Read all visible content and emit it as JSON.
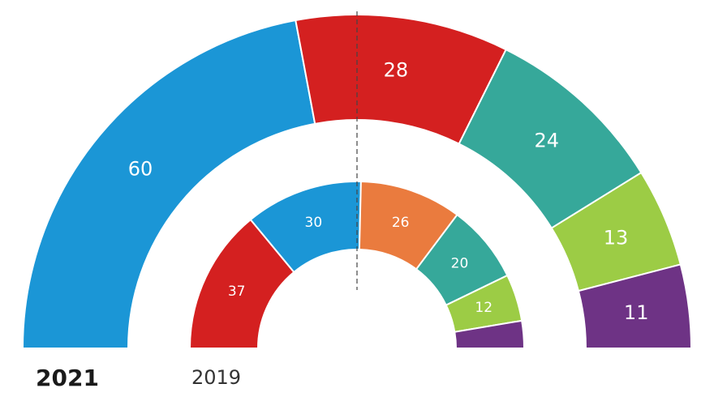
{
  "chart_data": [
    {
      "type": "parliament",
      "label": "2021",
      "values": [
        60,
        28,
        24,
        13,
        11
      ],
      "colors": [
        "#1b96d6",
        "#d42020",
        "#36a89a",
        "#9ccc45",
        "#6e3385"
      ],
      "value_labels": [
        "60",
        "28",
        "24",
        "13",
        "11"
      ]
    },
    {
      "type": "parliament",
      "label": "2019",
      "values": [
        37,
        30,
        26,
        20,
        12,
        7
      ],
      "colors": [
        "#d42020",
        "#1b96d6",
        "#ea7b3e",
        "#36a89a",
        "#9ccc45",
        "#6e3385"
      ],
      "value_labels": [
        "37",
        "30",
        "26",
        "20",
        "12",
        ""
      ]
    }
  ]
}
